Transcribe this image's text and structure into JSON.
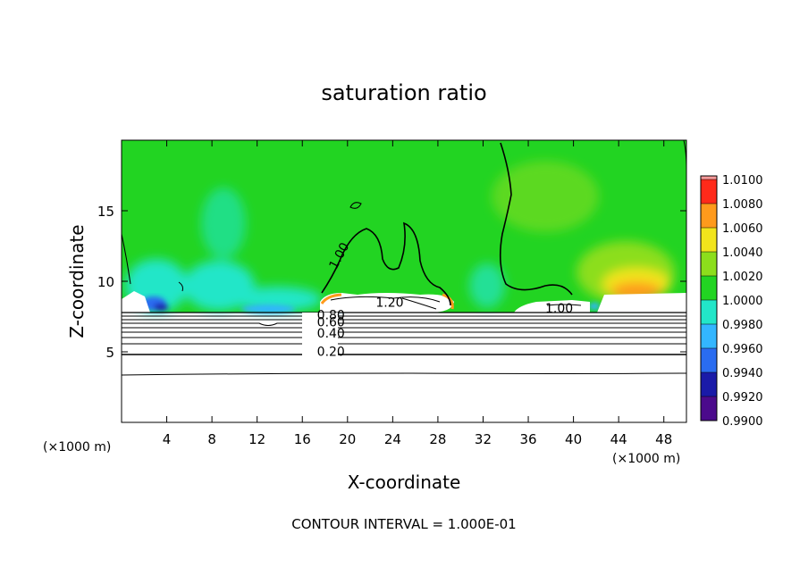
{
  "chart_data": {
    "type": "heatmap",
    "title": "saturation ratio",
    "xlabel": "X-coordinate",
    "ylabel": "Z-coordinate",
    "x_unit": "(×1000 m)",
    "x_unit_right": "(×1000 m)",
    "xlim": [
      0,
      50
    ],
    "ylim": [
      0,
      20
    ],
    "x_ticks": [
      4,
      8,
      12,
      16,
      20,
      24,
      28,
      32,
      36,
      40,
      44,
      48
    ],
    "x_tick_labels": [
      "4",
      "8",
      "12",
      "16",
      "20",
      "24",
      "28",
      "32",
      "36",
      "40",
      "44",
      "48"
    ],
    "y_ticks": [
      5,
      10,
      15
    ],
    "y_tick_labels": [
      "5",
      "10",
      "15"
    ],
    "colorbar": {
      "levels": [
        0.99,
        0.992,
        0.994,
        0.996,
        0.998,
        1.0,
        1.002,
        1.004,
        1.006,
        1.008,
        1.01
      ],
      "labels": [
        "0.9900",
        "0.9920",
        "0.9940",
        "0.9960",
        "0.9980",
        "1.0000",
        "1.0020",
        "1.0040",
        "1.0060",
        "1.0080",
        "1.0100"
      ],
      "colors": [
        "#4b0a8c",
        "#1a1aa8",
        "#2a6cf0",
        "#33b6ff",
        "#22e6c8",
        "#22d422",
        "#8cde1c",
        "#f2e41c",
        "#ff9a1c",
        "#ff2a1a",
        "#f79a9a"
      ]
    },
    "contour_labels": [
      {
        "text": "1.00",
        "x": 19.0,
        "z": 10.8,
        "angle": -62
      },
      {
        "text": "1.20",
        "x": 22.5,
        "z": 8.2,
        "angle": 0
      },
      {
        "text": "1.00",
        "x": 37.5,
        "z": 7.8,
        "angle": 0
      },
      {
        "text": "0.80",
        "x": 17.3,
        "z": 7.3,
        "angle": 0
      },
      {
        "text": "0.60",
        "x": 17.3,
        "z": 6.8,
        "angle": 0
      },
      {
        "text": "0.40",
        "x": 17.3,
        "z": 6.0,
        "angle": 0
      },
      {
        "text": "0.20",
        "x": 17.3,
        "z": 4.7,
        "angle": 0
      }
    ],
    "contour_levels_below": [
      0.1,
      0.2,
      0.3,
      0.4,
      0.5,
      0.6,
      0.7,
      0.8,
      0.9
    ],
    "grid": false,
    "legend": "colorbar-right"
  },
  "footer": {
    "contour_interval": "CONTOUR INTERVAL = 1.000E-01"
  }
}
